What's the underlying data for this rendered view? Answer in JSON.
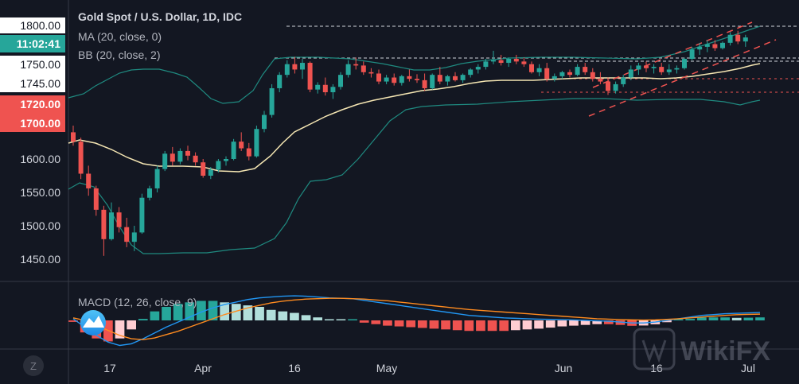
{
  "header": {
    "title": "Gold Spot / U.S. Dollar, 1D, IDC",
    "ma_label": "MA (20, close, 0)",
    "bb_label": "BB (20, close, 2)",
    "macd_label": "MACD (12, 26, close, 9)"
  },
  "price_axis": {
    "ticks": [
      "1800.00",
      "1750.00",
      "1745.00",
      "1600.00",
      "1550.00",
      "1500.00",
      "1450.00"
    ],
    "time_badge": "11:02:41",
    "red_badges": [
      "1720.00",
      "1700.00"
    ]
  },
  "time_axis": {
    "labels": [
      "17",
      "Apr",
      "16",
      "May",
      "Jun",
      "16",
      "Jul"
    ]
  },
  "watermark": {
    "brand": "WikiFX"
  },
  "corner_button": "Z",
  "colors": {
    "background": "#131722",
    "up": "#26a69a",
    "down": "#ef5350",
    "ma": "#f5e6b3",
    "bb": "#1f8a80",
    "macd": "#2196f3",
    "signal": "#ff8b1f",
    "badge_green": "#26a69a",
    "badge_red": "#ef5350"
  },
  "chart_data": [
    {
      "type": "candlestick",
      "title": "Gold Spot / U.S. Dollar, 1D, IDC",
      "ylim": [
        1430,
        1810
      ],
      "yticks": [
        1450,
        1500,
        1550,
        1600,
        1745,
        1750,
        1800
      ],
      "candles": [
        [
          1640,
          1650,
          1620,
          1626
        ],
        [
          1626,
          1632,
          1570,
          1578
        ],
        [
          1578,
          1590,
          1545,
          1556
        ],
        [
          1556,
          1560,
          1515,
          1524
        ],
        [
          1524,
          1530,
          1455,
          1480
        ],
        [
          1480,
          1535,
          1478,
          1520
        ],
        [
          1520,
          1528,
          1490,
          1498
        ],
        [
          1498,
          1512,
          1468,
          1476
        ],
        [
          1476,
          1500,
          1462,
          1490
        ],
        [
          1490,
          1548,
          1488,
          1542
        ],
        [
          1542,
          1560,
          1538,
          1556
        ],
        [
          1556,
          1590,
          1550,
          1585
        ],
        [
          1585,
          1612,
          1582,
          1608
        ],
        [
          1608,
          1618,
          1590,
          1596
        ],
        [
          1596,
          1616,
          1592,
          1612
        ],
        [
          1612,
          1620,
          1598,
          1605
        ],
        [
          1605,
          1610,
          1590,
          1595
        ],
        [
          1595,
          1600,
          1572,
          1575
        ],
        [
          1575,
          1588,
          1570,
          1584
        ],
        [
          1584,
          1600,
          1580,
          1597
        ],
        [
          1597,
          1604,
          1590,
          1600
        ],
        [
          1600,
          1630,
          1598,
          1626
        ],
        [
          1626,
          1640,
          1612,
          1616
        ],
        [
          1616,
          1624,
          1598,
          1604
        ],
        [
          1604,
          1650,
          1602,
          1645
        ],
        [
          1645,
          1672,
          1640,
          1666
        ],
        [
          1666,
          1712,
          1662,
          1706
        ],
        [
          1706,
          1730,
          1700,
          1726
        ],
        [
          1726,
          1748,
          1722,
          1742
        ],
        [
          1742,
          1753,
          1728,
          1734
        ],
        [
          1734,
          1750,
          1720,
          1744
        ],
        [
          1744,
          1746,
          1700,
          1704
        ],
        [
          1704,
          1715,
          1698,
          1711
        ],
        [
          1711,
          1722,
          1695,
          1700
        ],
        [
          1700,
          1712,
          1690,
          1708
        ],
        [
          1708,
          1730,
          1704,
          1726
        ],
        [
          1726,
          1748,
          1722,
          1742
        ],
        [
          1742,
          1752,
          1734,
          1740
        ],
        [
          1740,
          1746,
          1726,
          1730
        ],
        [
          1730,
          1736,
          1722,
          1728
        ],
        [
          1728,
          1734,
          1712,
          1716
        ],
        [
          1716,
          1726,
          1712,
          1722
        ],
        [
          1722,
          1728,
          1710,
          1714
        ],
        [
          1714,
          1726,
          1710,
          1724
        ],
        [
          1724,
          1734,
          1716,
          1720
        ],
        [
          1720,
          1727,
          1714,
          1718
        ],
        [
          1718,
          1728,
          1702,
          1706
        ],
        [
          1706,
          1728,
          1704,
          1726
        ],
        [
          1726,
          1738,
          1712,
          1716
        ],
        [
          1716,
          1726,
          1710,
          1724
        ],
        [
          1724,
          1730,
          1716,
          1718
        ],
        [
          1718,
          1728,
          1714,
          1726
        ],
        [
          1726,
          1736,
          1722,
          1734
        ],
        [
          1734,
          1742,
          1728,
          1738
        ],
        [
          1738,
          1750,
          1734,
          1746
        ],
        [
          1746,
          1762,
          1742,
          1748
        ],
        [
          1748,
          1756,
          1740,
          1744
        ],
        [
          1744,
          1752,
          1738,
          1750
        ],
        [
          1750,
          1756,
          1742,
          1746
        ],
        [
          1746,
          1752,
          1738,
          1742
        ],
        [
          1742,
          1746,
          1728,
          1730
        ],
        [
          1730,
          1742,
          1724,
          1736
        ],
        [
          1736,
          1744,
          1716,
          1720
        ],
        [
          1720,
          1728,
          1716,
          1724
        ],
        [
          1724,
          1732,
          1720,
          1730
        ],
        [
          1730,
          1734,
          1722,
          1726
        ],
        [
          1726,
          1742,
          1724,
          1738
        ],
        [
          1738,
          1744,
          1726,
          1730
        ],
        [
          1730,
          1736,
          1716,
          1720
        ],
        [
          1720,
          1730,
          1712,
          1716
        ],
        [
          1716,
          1722,
          1696,
          1702
        ],
        [
          1702,
          1716,
          1698,
          1712
        ],
        [
          1712,
          1726,
          1708,
          1722
        ],
        [
          1722,
          1740,
          1718,
          1734
        ],
        [
          1734,
          1744,
          1726,
          1740
        ],
        [
          1740,
          1746,
          1730,
          1736
        ],
        [
          1736,
          1742,
          1728,
          1738
        ],
        [
          1738,
          1744,
          1726,
          1730
        ],
        [
          1730,
          1742,
          1726,
          1734
        ],
        [
          1734,
          1740,
          1728,
          1736
        ],
        [
          1736,
          1752,
          1734,
          1750
        ],
        [
          1750,
          1768,
          1748,
          1764
        ],
        [
          1764,
          1774,
          1756,
          1768
        ],
        [
          1768,
          1778,
          1760,
          1772
        ],
        [
          1772,
          1778,
          1762,
          1766
        ],
        [
          1766,
          1776,
          1764,
          1774
        ],
        [
          1774,
          1790,
          1770,
          1786
        ],
        [
          1786,
          1792,
          1772,
          1776
        ],
        [
          1776,
          1786,
          1768,
          1782
        ]
      ]
    },
    {
      "type": "line",
      "title": "MACD (12, 26, close, 9)",
      "series": [
        {
          "values": [
            2,
            -8,
            -18,
            -26,
            -30,
            -28,
            -22,
            -15,
            -8,
            -2,
            4,
            10,
            15,
            19,
            22,
            25,
            27,
            28,
            29,
            29.5,
            29,
            28,
            27,
            26.5,
            26,
            24,
            22,
            20,
            18,
            16,
            14,
            12,
            10,
            8,
            6,
            5,
            4,
            3,
            2.5,
            2,
            1.5,
            1.2,
            1,
            0.5,
            0,
            -0.5,
            -1,
            -2,
            -3,
            -3,
            -2,
            0,
            2,
            4,
            6,
            7,
            8,
            8.5,
            9,
            9.5
          ]
        },
        {
          "values": [
            3,
            0,
            -6,
            -12,
            -18,
            -22,
            -23,
            -21,
            -17,
            -13,
            -8,
            -3,
            2,
            7,
            11,
            15,
            18,
            21,
            23,
            24.5,
            25.5,
            26,
            26.5,
            26.5,
            26,
            25.5,
            24.5,
            23.5,
            22,
            20.5,
            19,
            17.5,
            16,
            14.5,
            13,
            12,
            11,
            10,
            9,
            8,
            7,
            6,
            5,
            4,
            3,
            2,
            1.5,
            1,
            0.6,
            0.4,
            0.6,
            1.2,
            2,
            3,
            4,
            5,
            6,
            6.8,
            7.2,
            7.5
          ]
        }
      ]
    }
  ]
}
